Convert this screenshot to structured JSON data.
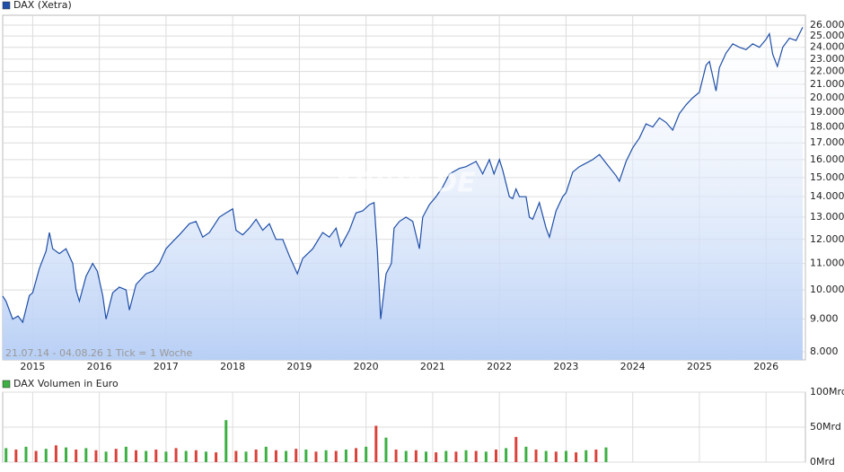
{
  "chart_data": [
    {
      "type": "line",
      "title": "DAX (Xetra)",
      "subtitle": "21.07.14 - 04.08.26   1 Tick = 1 Woche",
      "watermark": "ARIVA.DE",
      "log_scale": true,
      "grid": true,
      "color": "#1f4fa8",
      "area_color": "#b8cff5",
      "xlim": [
        2014.55,
        2026.59
      ],
      "xticks": [
        2015,
        2016,
        2017,
        2018,
        2019,
        2020,
        2021,
        2022,
        2023,
        2024,
        2025,
        2026
      ],
      "ylim": [
        7770,
        26940
      ],
      "yticks": [
        {
          "value": 8000,
          "label": "8.000"
        },
        {
          "value": 9000,
          "label": "9.000"
        },
        {
          "value": 10000,
          "label": "10.000"
        },
        {
          "value": 11000,
          "label": "11.000"
        },
        {
          "value": 12000,
          "label": "12.000"
        },
        {
          "value": 13000,
          "label": "13.000"
        },
        {
          "value": 14000,
          "label": "14.000"
        },
        {
          "value": 15000,
          "label": "15.000"
        },
        {
          "value": 16000,
          "label": "16.000"
        },
        {
          "value": 17000,
          "label": "17.000"
        },
        {
          "value": 18000,
          "label": "18.000"
        },
        {
          "value": 19000,
          "label": "19.000"
        },
        {
          "value": 20000,
          "label": "20.000"
        },
        {
          "value": 21000,
          "label": "21.000"
        },
        {
          "value": 22000,
          "label": "22.000"
        },
        {
          "value": 23000,
          "label": "23.000"
        },
        {
          "value": 24000,
          "label": "24.000"
        },
        {
          "value": 25000,
          "label": "25.000"
        },
        {
          "value": 26000,
          "label": "26.000"
        }
      ],
      "x": [
        2014.55,
        2014.6,
        2014.7,
        2014.78,
        2014.85,
        2014.95,
        2015.0,
        2015.1,
        2015.2,
        2015.25,
        2015.3,
        2015.4,
        2015.5,
        2015.6,
        2015.65,
        2015.7,
        2015.8,
        2015.9,
        2015.97,
        2016.05,
        2016.1,
        2016.2,
        2016.3,
        2016.4,
        2016.45,
        2016.55,
        2016.7,
        2016.8,
        2016.9,
        2017.0,
        2017.1,
        2017.2,
        2017.35,
        2017.45,
        2017.55,
        2017.65,
        2017.8,
        2017.9,
        2018.0,
        2018.05,
        2018.15,
        2018.25,
        2018.35,
        2018.45,
        2018.55,
        2018.65,
        2018.75,
        2018.85,
        2018.97,
        2019.05,
        2019.2,
        2019.35,
        2019.45,
        2019.55,
        2019.62,
        2019.75,
        2019.85,
        2019.95,
        2020.05,
        2020.12,
        2020.17,
        2020.22,
        2020.3,
        2020.38,
        2020.42,
        2020.5,
        2020.6,
        2020.7,
        2020.8,
        2020.85,
        2020.95,
        2021.05,
        2021.15,
        2021.25,
        2021.4,
        2021.5,
        2021.65,
        2021.75,
        2021.85,
        2021.92,
        2022.0,
        2022.05,
        2022.15,
        2022.2,
        2022.25,
        2022.3,
        2022.4,
        2022.45,
        2022.5,
        2022.6,
        2022.7,
        2022.75,
        2022.85,
        2022.95,
        2023.0,
        2023.1,
        2023.2,
        2023.3,
        2023.4,
        2023.5,
        2023.6,
        2023.75,
        2023.8,
        2023.9,
        2024.0,
        2024.1,
        2024.2,
        2024.3,
        2024.4,
        2024.5,
        2024.6,
        2024.7,
        2024.8,
        2024.9,
        2025.0,
        2025.1,
        2025.15,
        2025.25,
        2025.3,
        2025.4,
        2025.5,
        2025.6,
        2025.7,
        2025.8,
        2025.9,
        2026.0,
        2026.05,
        2026.1,
        2026.17,
        2026.25,
        2026.35,
        2026.45,
        2026.55
      ],
      "series": [
        {
          "name": "DAX (Xetra)",
          "values": [
            9780,
            9600,
            9000,
            9100,
            8900,
            9800,
            9900,
            10800,
            11500,
            12300,
            11600,
            11400,
            11600,
            11000,
            10000,
            9600,
            10500,
            11000,
            10700,
            9800,
            9000,
            9900,
            10100,
            10000,
            9300,
            10200,
            10600,
            10700,
            11000,
            11600,
            11900,
            12200,
            12700,
            12800,
            12100,
            12300,
            13000,
            13200,
            13400,
            12400,
            12200,
            12500,
            12900,
            12400,
            12700,
            12000,
            12000,
            11300,
            10600,
            11200,
            11600,
            12300,
            12100,
            12500,
            11700,
            12400,
            13200,
            13300,
            13600,
            13700,
            11500,
            9000,
            10600,
            11000,
            12500,
            12800,
            13000,
            12800,
            11600,
            13000,
            13600,
            14000,
            14500,
            15200,
            15500,
            15600,
            15900,
            15200,
            16000,
            15200,
            16000,
            15400,
            14000,
            13900,
            14400,
            14000,
            14000,
            13000,
            12900,
            13700,
            12500,
            12100,
            13300,
            14000,
            14200,
            15300,
            15600,
            15800,
            16000,
            16300,
            15800,
            15100,
            14800,
            15900,
            16700,
            17300,
            18200,
            18000,
            18600,
            18300,
            17800,
            18900,
            19500,
            20000,
            20400,
            22500,
            22800,
            20500,
            22300,
            23500,
            24300,
            24000,
            23800,
            24300,
            24000,
            24700,
            25200,
            23400,
            22400,
            24000,
            24800,
            24600,
            25800
          ]
        }
      ]
    },
    {
      "type": "bar",
      "title": "DAX Volumen in Euro",
      "grid": true,
      "colors": [
        "#3cb043",
        "#d9433b"
      ],
      "xlim": [
        2014.55,
        2026.59
      ],
      "ylim": [
        0,
        100
      ],
      "yticks": [
        {
          "value": 0,
          "label": "0Mrd"
        },
        {
          "value": 50,
          "label": "50Mrd"
        },
        {
          "value": 100,
          "label": "100Mrd"
        }
      ],
      "x": [
        2014.6,
        2014.75,
        2014.9,
        2015.05,
        2015.2,
        2015.35,
        2015.5,
        2015.65,
        2015.8,
        2015.95,
        2016.1,
        2016.25,
        2016.4,
        2016.55,
        2016.7,
        2016.85,
        2017.0,
        2017.15,
        2017.3,
        2017.45,
        2017.6,
        2017.75,
        2017.9,
        2018.05,
        2018.2,
        2018.35,
        2018.5,
        2018.65,
        2018.8,
        2018.95,
        2019.1,
        2019.25,
        2019.4,
        2019.55,
        2019.7,
        2019.85,
        2020.0,
        2020.15,
        2020.3,
        2020.45,
        2020.6,
        2020.75,
        2020.9,
        2021.05,
        2021.2,
        2021.35,
        2021.5,
        2021.65,
        2021.8,
        2021.95,
        2022.1,
        2022.25,
        2022.4,
        2022.55,
        2022.7,
        2022.85,
        2023.0,
        2023.15,
        2023.3,
        2023.45,
        2023.6
      ],
      "values": [
        20,
        18,
        22,
        16,
        19,
        24,
        21,
        18,
        20,
        17,
        15,
        19,
        22,
        17,
        16,
        18,
        15,
        20,
        16,
        17,
        15,
        14,
        60,
        16,
        15,
        18,
        22,
        17,
        16,
        19,
        18,
        15,
        17,
        16,
        18,
        20,
        22,
        52,
        35,
        18,
        16,
        17,
        15,
        14,
        16,
        15,
        17,
        16,
        15,
        18,
        20,
        36,
        22,
        18,
        16,
        15,
        16,
        14,
        17,
        18,
        21
      ]
    }
  ]
}
